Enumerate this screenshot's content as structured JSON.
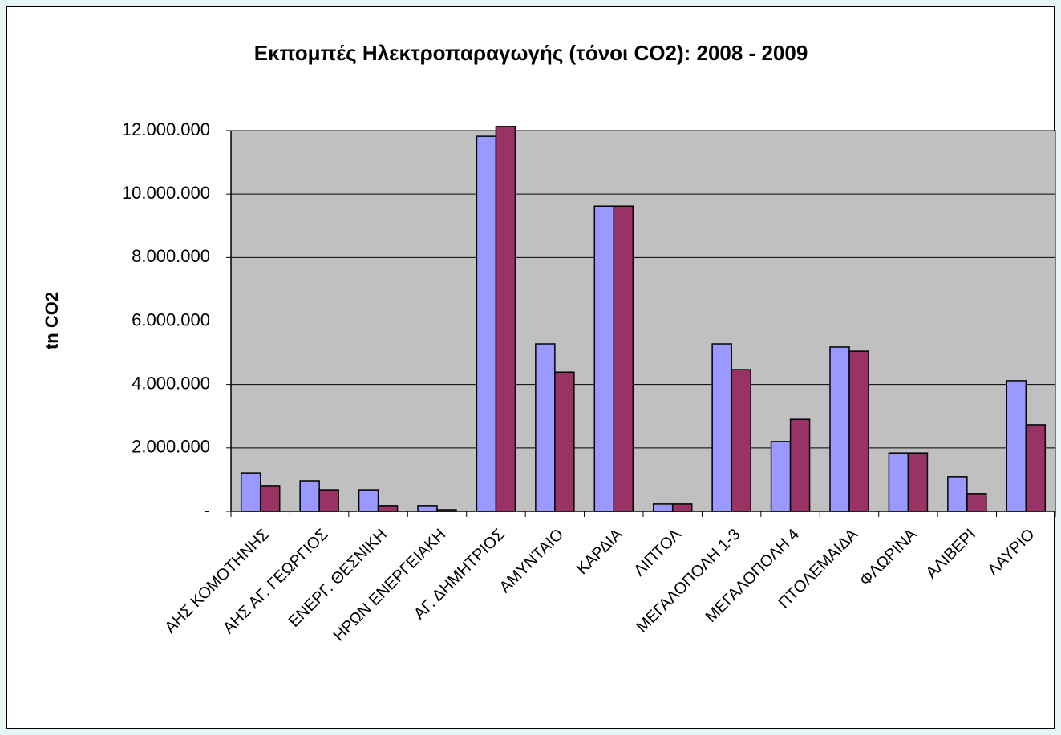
{
  "chart_data": {
    "type": "bar",
    "title": "Εκπομπές Ηλεκτροπαραγωγής (τόνοι CO2): 2008 - 2009",
    "y_label": "tn CO2",
    "categories": [
      "ΑΗΣ ΚΟΜΟΤΗΝΗΣ",
      "ΑΗΣ ΑΓ. ΓΕΩΡΓΙΟΣ",
      "ΕΝΕΡΓ. ΘΕΣΝΙΚΗ",
      "ΗΡΩΝ ΕΝΕΡΓΕΙΑΚΗ",
      "ΑΓ. ΔΗΜΗΤΡΙΟΣ",
      "ΑΜΥΝΤΑΙΟ",
      "ΚΑΡΔΙΑ",
      "ΛΙΠΤΟΛ",
      "ΜΕΓΑΛΟΠΟΛΗ 1-3",
      "ΜΕΓΑΛΟΠΟΛΗ 4",
      "ΠΤΟΛΕΜΑΙΔΑ",
      "ΦΛΩΡΙΝΑ",
      "ΑΛΙΒΕΡΙ",
      "ΛΑΥΡΙΟ"
    ],
    "series": [
      {
        "color": "#9999ff",
        "values": [
          1210000,
          960000,
          680000,
          180000,
          11820000,
          5280000,
          9620000,
          230000,
          5280000,
          2200000,
          5180000,
          1840000,
          1090000,
          4120000
        ]
      },
      {
        "color": "#993366",
        "values": [
          810000,
          680000,
          180000,
          50000,
          12130000,
          4390000,
          9620000,
          230000,
          4470000,
          2900000,
          5050000,
          1840000,
          560000,
          2730000
        ]
      }
    ],
    "ylim": [
      0,
      12000000
    ],
    "yticks": [
      {
        "value": 0,
        "label": "-"
      },
      {
        "value": 2000000,
        "label": "2.000.000"
      },
      {
        "value": 4000000,
        "label": "4.000.000"
      },
      {
        "value": 6000000,
        "label": "6.000.000"
      },
      {
        "value": 8000000,
        "label": "8.000.000"
      },
      {
        "value": 10000000,
        "label": "10.000.000"
      },
      {
        "value": 12000000,
        "label": "12.000.000"
      }
    ],
    "grid": true,
    "plot_background": "#c0c0c0"
  }
}
